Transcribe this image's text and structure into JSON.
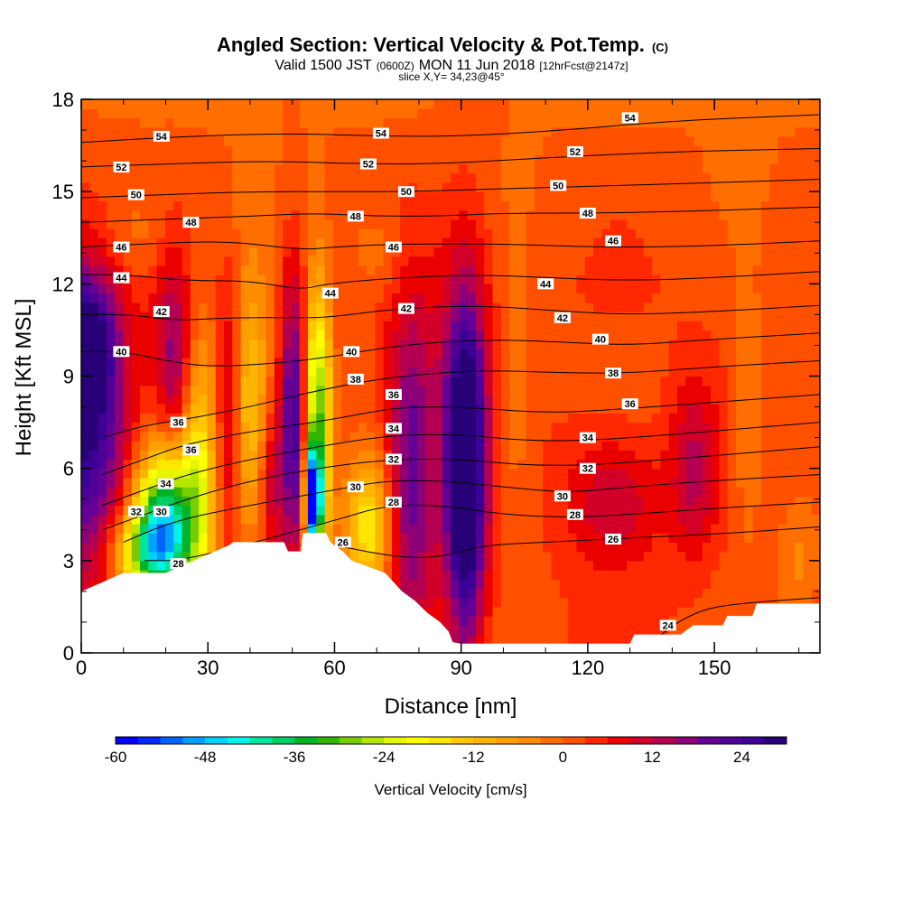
{
  "chart_data": {
    "type": "heatmap",
    "title": "Angled Section: Vertical Velocity & Pot.Temp.",
    "title_unit": "(C)",
    "subtitle_parts": [
      "Valid 1500 JST",
      "(0600Z)",
      "MON 11 Jun 2018",
      "[12hrFcst@2147z]"
    ],
    "slice_label": "slice X,Y= 34,23@45°",
    "xlabel": "Distance [nm]",
    "ylabel": "Height [Kft MSL]",
    "xlim": [
      0,
      175
    ],
    "ylim": [
      0,
      18
    ],
    "x_ticks": [
      0,
      30,
      60,
      90,
      120,
      150
    ],
    "y_ticks": [
      0,
      3,
      6,
      9,
      12,
      15,
      18
    ],
    "colorbar": {
      "label": "Vertical Velocity [cm/s]",
      "min": -60,
      "max": 30,
      "step": 3,
      "tick_values": [
        -60,
        -48,
        -36,
        -24,
        -12,
        0,
        12,
        24
      ],
      "colors": [
        "#0000ff",
        "#0028ff",
        "#0064ff",
        "#00a0ff",
        "#00d2ff",
        "#00f5e6",
        "#00e6a0",
        "#00cd64",
        "#00b428",
        "#32b400",
        "#78cd00",
        "#b4e600",
        "#e6f500",
        "#ffff00",
        "#ffe600",
        "#ffc800",
        "#ffb400",
        "#ffa000",
        "#ff8c00",
        "#ff6e00",
        "#ff5000",
        "#ff2800",
        "#eb0000",
        "#d20028",
        "#b40050",
        "#8c0078",
        "#640096",
        "#500096",
        "#3c0096",
        "#280078"
      ]
    },
    "terrain_kft": [
      [
        0,
        2.0
      ],
      [
        5,
        2.3
      ],
      [
        10,
        2.6
      ],
      [
        20,
        2.6
      ],
      [
        25,
        2.9
      ],
      [
        30,
        3.2
      ],
      [
        35,
        3.5
      ],
      [
        36,
        3.6
      ],
      [
        48,
        3.6
      ],
      [
        49,
        3.3
      ],
      [
        52,
        3.3
      ],
      [
        52.5,
        3.9
      ],
      [
        58,
        3.9
      ],
      [
        59,
        3.6
      ],
      [
        62,
        3.3
      ],
      [
        64,
        3.0
      ],
      [
        68,
        2.8
      ],
      [
        72,
        2.6
      ],
      [
        74,
        2.3
      ],
      [
        76,
        2.0
      ],
      [
        79,
        1.7
      ],
      [
        82,
        1.3
      ],
      [
        85,
        1.0
      ],
      [
        87,
        0.7
      ],
      [
        88,
        0.35
      ],
      [
        90,
        0.3
      ],
      [
        130,
        0.3
      ],
      [
        131,
        0.6
      ],
      [
        142,
        0.6
      ],
      [
        145,
        0.9
      ],
      [
        152,
        0.9
      ],
      [
        153,
        1.2
      ],
      [
        159,
        1.2
      ],
      [
        160,
        1.6
      ],
      [
        175,
        1.6
      ]
    ],
    "velocity_features": [
      {
        "x": 0,
        "y": 7.5,
        "sx": 8,
        "sy": 3.5,
        "value": 26
      },
      {
        "x": 2,
        "y": 10,
        "sx": 4,
        "sy": 1.5,
        "value": 16
      },
      {
        "x": 20,
        "y": 4.5,
        "sx": 5,
        "sy": 1.6,
        "value": -40
      },
      {
        "x": 16,
        "y": 3.2,
        "sx": 6,
        "sy": 1.0,
        "value": -28
      },
      {
        "x": 22,
        "y": 9.5,
        "sx": 3,
        "sy": 2.5,
        "value": 14
      },
      {
        "x": 28,
        "y": 6,
        "sx": 3,
        "sy": 3,
        "value": -18
      },
      {
        "x": 40,
        "y": 8,
        "sx": 3.5,
        "sy": 3,
        "value": -16
      },
      {
        "x": 35,
        "y": 8,
        "sx": 2,
        "sy": 3,
        "value": 12
      },
      {
        "x": 45,
        "y": 5.5,
        "sx": 2,
        "sy": 2,
        "value": 10
      },
      {
        "x": 50,
        "y": 7.5,
        "sx": 2,
        "sy": 3.5,
        "value": 20
      },
      {
        "x": 55,
        "y": 5,
        "sx": 1.2,
        "sy": 1.0,
        "value": -60
      },
      {
        "x": 55.5,
        "y": 7.5,
        "sx": 1.6,
        "sy": 3.0,
        "value": -30
      },
      {
        "x": 58,
        "y": 7.5,
        "sx": 1.5,
        "sy": 3,
        "value": -14
      },
      {
        "x": 68,
        "y": 4,
        "sx": 4,
        "sy": 1.5,
        "value": -20
      },
      {
        "x": 78,
        "y": 6,
        "sx": 4,
        "sy": 4,
        "value": 18
      },
      {
        "x": 91,
        "y": 5.5,
        "sx": 3,
        "sy": 3.5,
        "value": 30
      },
      {
        "x": 91,
        "y": 8,
        "sx": 5,
        "sy": 4.5,
        "value": 12
      },
      {
        "x": 126,
        "y": 5,
        "sx": 8,
        "sy": 1.5,
        "value": 10
      },
      {
        "x": 145,
        "y": 6,
        "sx": 4,
        "sy": 2,
        "value": 10
      },
      {
        "x": 158,
        "y": 7.5,
        "sx": 3,
        "sy": 3,
        "value": -6
      },
      {
        "x": 102,
        "y": 8,
        "sx": 4,
        "sy": 3,
        "value": -6
      },
      {
        "x": 12,
        "y": 13.5,
        "sx": 6,
        "sy": 1.2,
        "value": -5
      },
      {
        "x": 70,
        "y": 13,
        "sx": 5,
        "sy": 1,
        "value": -5
      },
      {
        "x": 170,
        "y": 3,
        "sx": 4,
        "sy": 1.5,
        "value": -6
      }
    ],
    "isentropes": [
      {
        "label": "24",
        "pts": [
          [
            135,
            0.3
          ],
          [
            140,
            0.9
          ],
          [
            147,
            1.4
          ],
          [
            155,
            1.6
          ],
          [
            175,
            1.8
          ]
        ]
      },
      {
        "label": "26",
        "pts": [
          [
            60,
            3.5
          ],
          [
            75,
            3.1
          ],
          [
            85,
            3.1
          ],
          [
            95,
            3.5
          ],
          [
            110,
            3.6
          ],
          [
            125,
            3.7
          ],
          [
            140,
            3.8
          ],
          [
            155,
            3.9
          ],
          [
            175,
            4.1
          ]
        ]
      },
      {
        "label": "28",
        "pts": [
          [
            15,
            3.0
          ],
          [
            25,
            3.0
          ],
          [
            60,
            4.3
          ],
          [
            72,
            4.8
          ],
          [
            85,
            4.8
          ],
          [
            100,
            4.5
          ],
          [
            115,
            4.4
          ],
          [
            130,
            4.5
          ],
          [
            150,
            4.7
          ],
          [
            175,
            4.9
          ]
        ]
      },
      {
        "label": "30",
        "pts": [
          [
            10,
            3.6
          ],
          [
            22,
            4.3
          ],
          [
            40,
            4.8
          ],
          [
            60,
            5.3
          ],
          [
            72,
            5.6
          ],
          [
            85,
            5.6
          ],
          [
            100,
            5.4
          ],
          [
            115,
            5.2
          ],
          [
            130,
            5.4
          ],
          [
            150,
            5.6
          ],
          [
            175,
            5.8
          ]
        ]
      },
      {
        "label": "32",
        "pts": [
          [
            5,
            4.0
          ],
          [
            15,
            4.5
          ],
          [
            25,
            5.0
          ],
          [
            40,
            5.6
          ],
          [
            60,
            6.1
          ],
          [
            75,
            6.3
          ],
          [
            90,
            6.3
          ],
          [
            105,
            6.1
          ],
          [
            120,
            6.1
          ],
          [
            140,
            6.3
          ],
          [
            175,
            6.7
          ]
        ]
      },
      {
        "label": "34",
        "pts": [
          [
            5,
            4.8
          ],
          [
            15,
            5.3
          ],
          [
            25,
            5.8
          ],
          [
            40,
            6.3
          ],
          [
            60,
            6.8
          ],
          [
            75,
            7.1
          ],
          [
            90,
            7.1
          ],
          [
            105,
            6.9
          ],
          [
            120,
            6.9
          ],
          [
            140,
            7.1
          ],
          [
            175,
            7.5
          ]
        ]
      },
      {
        "label": "36",
        "pts": [
          [
            5,
            5.8
          ],
          [
            15,
            6.3
          ],
          [
            25,
            6.8
          ],
          [
            40,
            7.2
          ],
          [
            60,
            7.6
          ],
          [
            75,
            8.0
          ],
          [
            90,
            8.0
          ],
          [
            110,
            7.8
          ],
          [
            125,
            7.9
          ],
          [
            145,
            8.1
          ],
          [
            175,
            8.4
          ]
        ]
      },
      {
        "label": "38",
        "pts": [
          [
            5,
            7.0
          ],
          [
            15,
            7.4
          ],
          [
            25,
            7.6
          ],
          [
            40,
            8.0
          ],
          [
            58,
            8.6
          ],
          [
            75,
            9.0
          ],
          [
            95,
            9.2
          ],
          [
            115,
            9.1
          ],
          [
            130,
            9.1
          ],
          [
            150,
            9.3
          ],
          [
            175,
            9.5
          ]
        ]
      },
      {
        "label": "40",
        "pts": [
          [
            0,
            9.8
          ],
          [
            10,
            9.8
          ],
          [
            20,
            9.5
          ],
          [
            30,
            9.3
          ],
          [
            45,
            9.4
          ],
          [
            58,
            9.6
          ],
          [
            75,
            10.0
          ],
          [
            95,
            10.2
          ],
          [
            115,
            10.1
          ],
          [
            130,
            10.0
          ],
          [
            150,
            10.2
          ],
          [
            175,
            10.4
          ]
        ]
      },
      {
        "label": "42",
        "pts": [
          [
            0,
            11.0
          ],
          [
            12,
            11.0
          ],
          [
            22,
            10.8
          ],
          [
            35,
            10.9
          ],
          [
            50,
            10.9
          ],
          [
            58,
            10.9
          ],
          [
            75,
            11.2
          ],
          [
            95,
            11.3
          ],
          [
            115,
            11.1
          ],
          [
            130,
            11.0
          ],
          [
            150,
            11.1
          ],
          [
            175,
            11.3
          ]
        ]
      },
      {
        "label": "44",
        "pts": [
          [
            0,
            12.3
          ],
          [
            10,
            12.3
          ],
          [
            25,
            12.1
          ],
          [
            40,
            12.1
          ],
          [
            52,
            11.8
          ],
          [
            58,
            12.0
          ],
          [
            75,
            12.2
          ],
          [
            95,
            12.3
          ],
          [
            110,
            12.2
          ],
          [
            130,
            12.1
          ],
          [
            150,
            12.2
          ],
          [
            175,
            12.4
          ]
        ]
      },
      {
        "label": "46",
        "pts": [
          [
            0,
            13.2
          ],
          [
            15,
            13.3
          ],
          [
            35,
            13.4
          ],
          [
            52,
            13.1
          ],
          [
            60,
            13.2
          ],
          [
            75,
            13.3
          ],
          [
            100,
            13.3
          ],
          [
            120,
            13.2
          ],
          [
            140,
            13.2
          ],
          [
            160,
            13.3
          ],
          [
            175,
            13.4
          ]
        ]
      },
      {
        "label": "48",
        "pts": [
          [
            0,
            14.0
          ],
          [
            20,
            14.1
          ],
          [
            40,
            14.2
          ],
          [
            55,
            14.3
          ],
          [
            70,
            14.2
          ],
          [
            85,
            14.2
          ],
          [
            100,
            14.3
          ],
          [
            130,
            14.3
          ],
          [
            175,
            14.5
          ]
        ]
      },
      {
        "label": "50",
        "pts": [
          [
            0,
            14.8
          ],
          [
            20,
            14.9
          ],
          [
            40,
            15.0
          ],
          [
            60,
            15.0
          ],
          [
            80,
            15.0
          ],
          [
            100,
            15.1
          ],
          [
            130,
            15.2
          ],
          [
            175,
            15.4
          ]
        ]
      },
      {
        "label": "52",
        "pts": [
          [
            0,
            15.8
          ],
          [
            20,
            15.9
          ],
          [
            45,
            16.0
          ],
          [
            65,
            15.9
          ],
          [
            85,
            15.9
          ],
          [
            110,
            16.1
          ],
          [
            140,
            16.3
          ],
          [
            175,
            16.4
          ]
        ]
      },
      {
        "label": "54",
        "pts": [
          [
            0,
            16.6
          ],
          [
            25,
            16.8
          ],
          [
            50,
            16.9
          ],
          [
            70,
            16.8
          ],
          [
            90,
            16.8
          ],
          [
            115,
            17.0
          ],
          [
            140,
            17.3
          ],
          [
            175,
            17.5
          ]
        ]
      }
    ],
    "isentrope_label_positions": [
      {
        "text": "54",
        "x": 19,
        "y": 16.8
      },
      {
        "text": "54",
        "x": 71,
        "y": 16.9
      },
      {
        "text": "54",
        "x": 130,
        "y": 17.4
      },
      {
        "text": "52",
        "x": 9.5,
        "y": 15.8
      },
      {
        "text": "52",
        "x": 68,
        "y": 15.9
      },
      {
        "text": "52",
        "x": 117,
        "y": 16.3
      },
      {
        "text": "50",
        "x": 13,
        "y": 14.9
      },
      {
        "text": "50",
        "x": 77,
        "y": 15.0
      },
      {
        "text": "50",
        "x": 113,
        "y": 15.2
      },
      {
        "text": "48",
        "x": 26,
        "y": 14.0
      },
      {
        "text": "48",
        "x": 65,
        "y": 14.2
      },
      {
        "text": "48",
        "x": 120,
        "y": 14.3
      },
      {
        "text": "46",
        "x": 9.5,
        "y": 13.2
      },
      {
        "text": "46",
        "x": 74,
        "y": 13.2
      },
      {
        "text": "46",
        "x": 126,
        "y": 13.4
      },
      {
        "text": "44",
        "x": 9.5,
        "y": 12.2
      },
      {
        "text": "44",
        "x": 59,
        "y": 11.7
      },
      {
        "text": "44",
        "x": 110,
        "y": 12.0
      },
      {
        "text": "42",
        "x": 19,
        "y": 11.1
      },
      {
        "text": "42",
        "x": 77,
        "y": 11.2
      },
      {
        "text": "42",
        "x": 114,
        "y": 10.9
      },
      {
        "text": "40",
        "x": 9.5,
        "y": 9.8
      },
      {
        "text": "40",
        "x": 64,
        "y": 9.8
      },
      {
        "text": "40",
        "x": 123,
        "y": 10.2
      },
      {
        "text": "38",
        "x": 65,
        "y": 8.9
      },
      {
        "text": "38",
        "x": 126,
        "y": 9.1
      },
      {
        "text": "36",
        "x": 23,
        "y": 7.5
      },
      {
        "text": "36",
        "x": 74,
        "y": 8.4
      },
      {
        "text": "36",
        "x": 130,
        "y": 8.1
      },
      {
        "text": "36",
        "x": 26,
        "y": 6.6
      },
      {
        "text": "34",
        "x": 20,
        "y": 5.5
      },
      {
        "text": "34",
        "x": 74,
        "y": 7.3
      },
      {
        "text": "34",
        "x": 120,
        "y": 7.0
      },
      {
        "text": "32",
        "x": 13,
        "y": 4.6
      },
      {
        "text": "32",
        "x": 74,
        "y": 6.3
      },
      {
        "text": "32",
        "x": 120,
        "y": 6.0
      },
      {
        "text": "30",
        "x": 19,
        "y": 4.6
      },
      {
        "text": "30",
        "x": 65,
        "y": 5.4
      },
      {
        "text": "30",
        "x": 114,
        "y": 5.1
      },
      {
        "text": "28",
        "x": 23,
        "y": 2.9
      },
      {
        "text": "28",
        "x": 74,
        "y": 4.9
      },
      {
        "text": "28",
        "x": 117,
        "y": 4.5
      },
      {
        "text": "26",
        "x": 62,
        "y": 3.6
      },
      {
        "text": "26",
        "x": 126,
        "y": 3.7
      },
      {
        "text": "24",
        "x": 139,
        "y": 0.9
      }
    ]
  }
}
